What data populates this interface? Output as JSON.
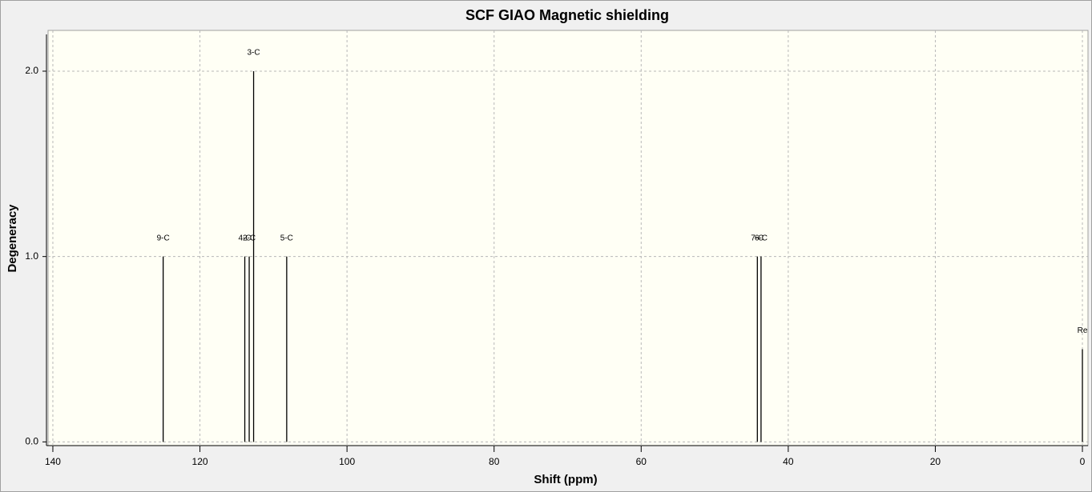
{
  "chart_data": {
    "type": "stem",
    "title": "SCF GIAO Magnetic shielding",
    "x_label": "Shift (ppm)",
    "y_label": "Degeneracy",
    "x": [
      125.0,
      113.9,
      113.3,
      112.7,
      108.2,
      44.2,
      43.7,
      0
    ],
    "values": [
      1,
      1,
      1,
      2,
      1,
      1,
      1,
      0.5
    ],
    "labels": [
      "9-C",
      "4-C",
      "2-C",
      "3-C",
      "5-C",
      "7-C",
      "6-C",
      "Re"
    ],
    "color": "#000000",
    "xlim": [
      140.65,
      -0.76
    ],
    "ylim": [
      -0.02,
      2.22
    ],
    "xticks": [
      140,
      120,
      100,
      80,
      60,
      40,
      20,
      0
    ],
    "yticks": [
      {
        "value": 0,
        "label": "0.0"
      },
      {
        "value": 1,
        "label": "1.0"
      },
      {
        "value": 2,
        "label": "2.0"
      }
    ],
    "grid": true
  }
}
